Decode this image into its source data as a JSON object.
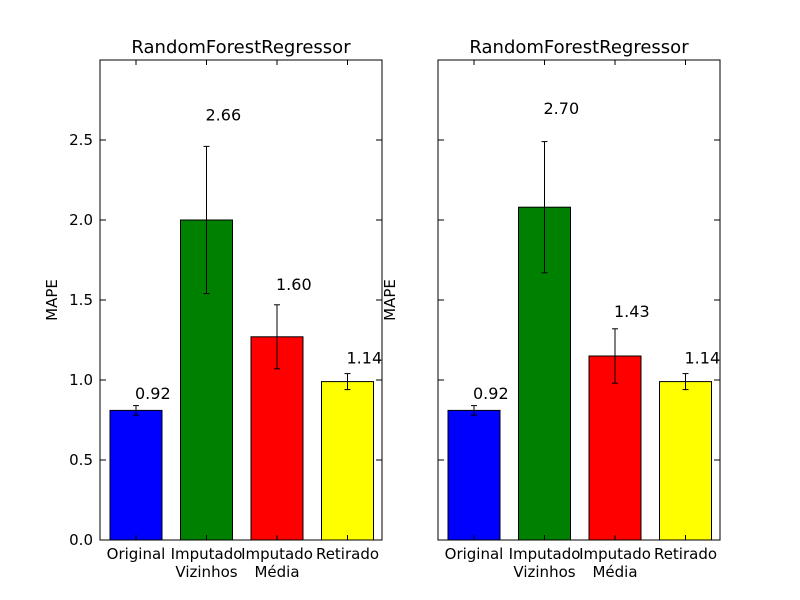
{
  "chart_data": [
    {
      "type": "bar",
      "title": "RandomForestRegressor",
      "ylabel": "MAPE",
      "xlabel": "",
      "ylim": [
        0,
        3.0
      ],
      "yticks": [
        "0.0",
        "0.5",
        "1.0",
        "1.5",
        "2.0",
        "2.5"
      ],
      "y_tick_labels_visible": true,
      "categories": [
        [
          "Original"
        ],
        [
          "Imputado",
          "Vizinhos"
        ],
        [
          "Imputado",
          "Média"
        ],
        [
          "Retirado"
        ]
      ],
      "values": [
        0.81,
        2.0,
        1.27,
        0.99
      ],
      "errors": [
        0.03,
        0.46,
        0.2,
        0.05
      ],
      "colors": [
        "#0000ff",
        "#008000",
        "#ff0000",
        "#ffff00"
      ],
      "annotations": [
        "0.92",
        "2.66",
        "1.60",
        "1.14"
      ],
      "annotation_y": [
        0.92,
        2.66,
        1.6,
        1.14
      ],
      "grid": false
    },
    {
      "type": "bar",
      "title": "RandomForestRegressor",
      "ylabel": "MAPE",
      "xlabel": "",
      "ylim": [
        0,
        3.0
      ],
      "yticks": [
        "0.0",
        "0.5",
        "1.0",
        "1.5",
        "2.0",
        "2.5"
      ],
      "y_tick_labels_visible": false,
      "categories": [
        [
          "Original"
        ],
        [
          "Imputado",
          "Vizinhos"
        ],
        [
          "Imputado",
          "Média"
        ],
        [
          "Retirado"
        ]
      ],
      "values": [
        0.81,
        2.08,
        1.15,
        0.99
      ],
      "errors": [
        0.03,
        0.41,
        0.17,
        0.05
      ],
      "colors": [
        "#0000ff",
        "#008000",
        "#ff0000",
        "#ffff00"
      ],
      "annotations": [
        "0.92",
        "2.70",
        "1.43",
        "1.14"
      ],
      "annotation_y": [
        0.92,
        2.7,
        1.43,
        1.14
      ],
      "grid": false
    }
  ]
}
